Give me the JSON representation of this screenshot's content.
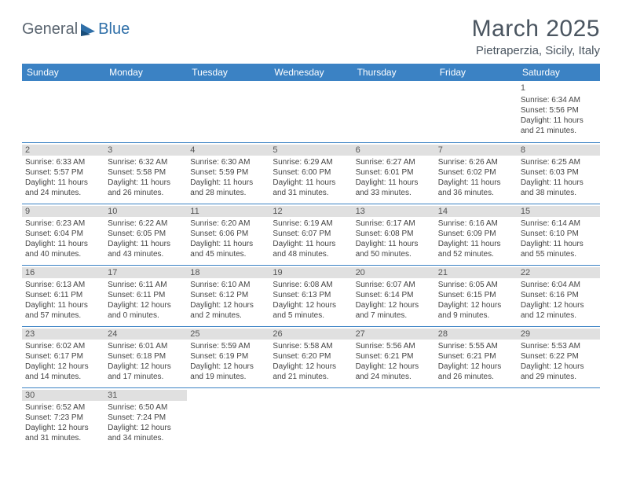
{
  "logo": {
    "text1": "General",
    "text2": "Blue"
  },
  "title": "March 2025",
  "location": "Pietraperzia, Sicily, Italy",
  "day_headers": [
    "Sunday",
    "Monday",
    "Tuesday",
    "Wednesday",
    "Thursday",
    "Friday",
    "Saturday"
  ],
  "colors": {
    "header_bg": "#3b82c4",
    "header_fg": "#ffffff",
    "cell_border": "#3b82c4",
    "daynum_bg": "#e0e0e0",
    "text": "#444444",
    "title_color": "#4a5560"
  },
  "weeks": [
    [
      null,
      null,
      null,
      null,
      null,
      null,
      {
        "n": "1",
        "sr": "Sunrise: 6:34 AM",
        "ss": "Sunset: 5:56 PM",
        "dl": "Daylight: 11 hours and 21 minutes.",
        "nobar": true
      }
    ],
    [
      {
        "n": "2",
        "sr": "Sunrise: 6:33 AM",
        "ss": "Sunset: 5:57 PM",
        "dl": "Daylight: 11 hours and 24 minutes."
      },
      {
        "n": "3",
        "sr": "Sunrise: 6:32 AM",
        "ss": "Sunset: 5:58 PM",
        "dl": "Daylight: 11 hours and 26 minutes."
      },
      {
        "n": "4",
        "sr": "Sunrise: 6:30 AM",
        "ss": "Sunset: 5:59 PM",
        "dl": "Daylight: 11 hours and 28 minutes."
      },
      {
        "n": "5",
        "sr": "Sunrise: 6:29 AM",
        "ss": "Sunset: 6:00 PM",
        "dl": "Daylight: 11 hours and 31 minutes."
      },
      {
        "n": "6",
        "sr": "Sunrise: 6:27 AM",
        "ss": "Sunset: 6:01 PM",
        "dl": "Daylight: 11 hours and 33 minutes."
      },
      {
        "n": "7",
        "sr": "Sunrise: 6:26 AM",
        "ss": "Sunset: 6:02 PM",
        "dl": "Daylight: 11 hours and 36 minutes."
      },
      {
        "n": "8",
        "sr": "Sunrise: 6:25 AM",
        "ss": "Sunset: 6:03 PM",
        "dl": "Daylight: 11 hours and 38 minutes."
      }
    ],
    [
      {
        "n": "9",
        "sr": "Sunrise: 6:23 AM",
        "ss": "Sunset: 6:04 PM",
        "dl": "Daylight: 11 hours and 40 minutes."
      },
      {
        "n": "10",
        "sr": "Sunrise: 6:22 AM",
        "ss": "Sunset: 6:05 PM",
        "dl": "Daylight: 11 hours and 43 minutes."
      },
      {
        "n": "11",
        "sr": "Sunrise: 6:20 AM",
        "ss": "Sunset: 6:06 PM",
        "dl": "Daylight: 11 hours and 45 minutes."
      },
      {
        "n": "12",
        "sr": "Sunrise: 6:19 AM",
        "ss": "Sunset: 6:07 PM",
        "dl": "Daylight: 11 hours and 48 minutes."
      },
      {
        "n": "13",
        "sr": "Sunrise: 6:17 AM",
        "ss": "Sunset: 6:08 PM",
        "dl": "Daylight: 11 hours and 50 minutes."
      },
      {
        "n": "14",
        "sr": "Sunrise: 6:16 AM",
        "ss": "Sunset: 6:09 PM",
        "dl": "Daylight: 11 hours and 52 minutes."
      },
      {
        "n": "15",
        "sr": "Sunrise: 6:14 AM",
        "ss": "Sunset: 6:10 PM",
        "dl": "Daylight: 11 hours and 55 minutes."
      }
    ],
    [
      {
        "n": "16",
        "sr": "Sunrise: 6:13 AM",
        "ss": "Sunset: 6:11 PM",
        "dl": "Daylight: 11 hours and 57 minutes."
      },
      {
        "n": "17",
        "sr": "Sunrise: 6:11 AM",
        "ss": "Sunset: 6:11 PM",
        "dl": "Daylight: 12 hours and 0 minutes."
      },
      {
        "n": "18",
        "sr": "Sunrise: 6:10 AM",
        "ss": "Sunset: 6:12 PM",
        "dl": "Daylight: 12 hours and 2 minutes."
      },
      {
        "n": "19",
        "sr": "Sunrise: 6:08 AM",
        "ss": "Sunset: 6:13 PM",
        "dl": "Daylight: 12 hours and 5 minutes."
      },
      {
        "n": "20",
        "sr": "Sunrise: 6:07 AM",
        "ss": "Sunset: 6:14 PM",
        "dl": "Daylight: 12 hours and 7 minutes."
      },
      {
        "n": "21",
        "sr": "Sunrise: 6:05 AM",
        "ss": "Sunset: 6:15 PM",
        "dl": "Daylight: 12 hours and 9 minutes."
      },
      {
        "n": "22",
        "sr": "Sunrise: 6:04 AM",
        "ss": "Sunset: 6:16 PM",
        "dl": "Daylight: 12 hours and 12 minutes."
      }
    ],
    [
      {
        "n": "23",
        "sr": "Sunrise: 6:02 AM",
        "ss": "Sunset: 6:17 PM",
        "dl": "Daylight: 12 hours and 14 minutes."
      },
      {
        "n": "24",
        "sr": "Sunrise: 6:01 AM",
        "ss": "Sunset: 6:18 PM",
        "dl": "Daylight: 12 hours and 17 minutes."
      },
      {
        "n": "25",
        "sr": "Sunrise: 5:59 AM",
        "ss": "Sunset: 6:19 PM",
        "dl": "Daylight: 12 hours and 19 minutes."
      },
      {
        "n": "26",
        "sr": "Sunrise: 5:58 AM",
        "ss": "Sunset: 6:20 PM",
        "dl": "Daylight: 12 hours and 21 minutes."
      },
      {
        "n": "27",
        "sr": "Sunrise: 5:56 AM",
        "ss": "Sunset: 6:21 PM",
        "dl": "Daylight: 12 hours and 24 minutes."
      },
      {
        "n": "28",
        "sr": "Sunrise: 5:55 AM",
        "ss": "Sunset: 6:21 PM",
        "dl": "Daylight: 12 hours and 26 minutes."
      },
      {
        "n": "29",
        "sr": "Sunrise: 5:53 AM",
        "ss": "Sunset: 6:22 PM",
        "dl": "Daylight: 12 hours and 29 minutes."
      }
    ],
    [
      {
        "n": "30",
        "sr": "Sunrise: 6:52 AM",
        "ss": "Sunset: 7:23 PM",
        "dl": "Daylight: 12 hours and 31 minutes."
      },
      {
        "n": "31",
        "sr": "Sunrise: 6:50 AM",
        "ss": "Sunset: 7:24 PM",
        "dl": "Daylight: 12 hours and 34 minutes."
      },
      null,
      null,
      null,
      null,
      null
    ]
  ]
}
